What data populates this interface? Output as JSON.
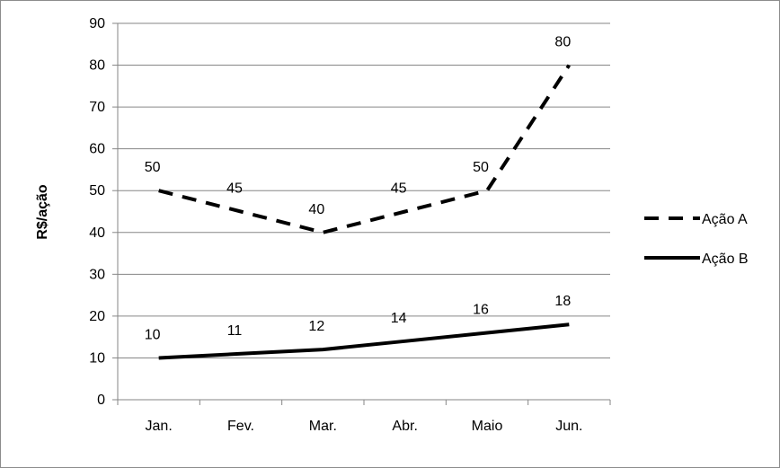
{
  "chart_data": {
    "type": "line",
    "ylabel": "R$/ação",
    "categories": [
      "Jan.",
      "Fev.",
      "Mar.",
      "Abr.",
      "Maio",
      "Jun."
    ],
    "ylim": [
      0,
      90
    ],
    "yticks": [
      0,
      10,
      20,
      30,
      40,
      50,
      60,
      70,
      80,
      90
    ],
    "grid": true,
    "legend_position": "right",
    "series": [
      {
        "name": "Ação A",
        "values": [
          50,
          45,
          40,
          45,
          50,
          80
        ],
        "line_style": "dashed",
        "color": "#000000"
      },
      {
        "name": "Ação B",
        "values": [
          10,
          11,
          12,
          14,
          16,
          18
        ],
        "line_style": "solid",
        "color": "#000000"
      }
    ]
  }
}
